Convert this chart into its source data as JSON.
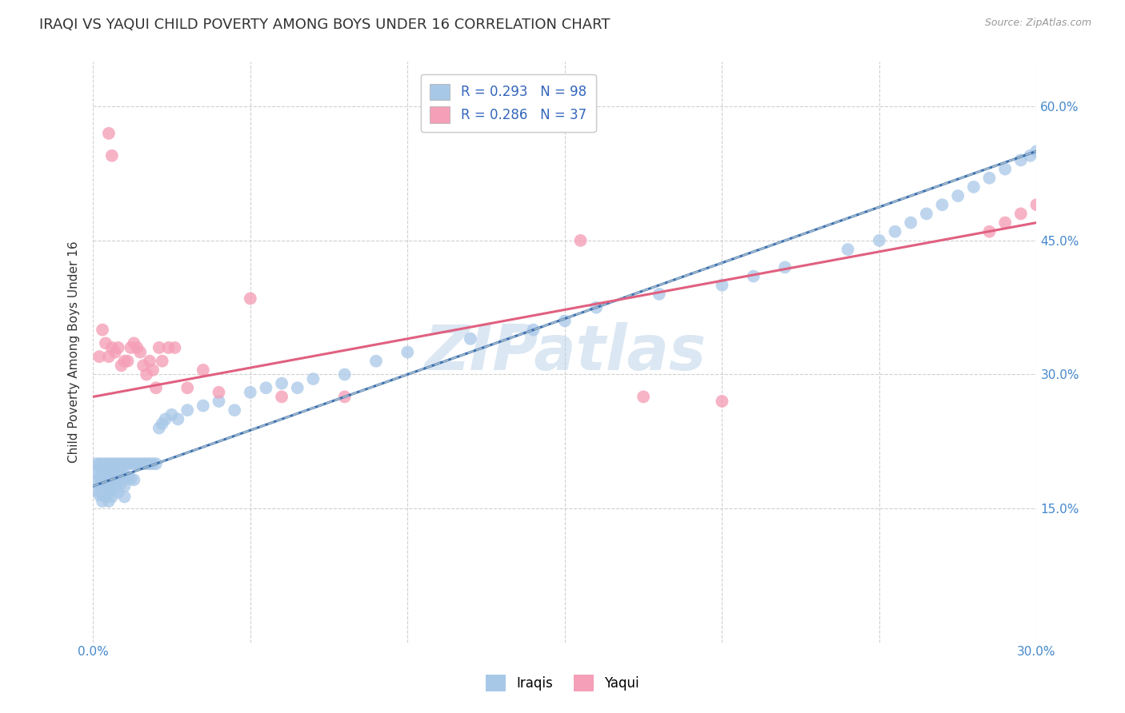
{
  "title": "IRAQI VS YAQUI CHILD POVERTY AMONG BOYS UNDER 16 CORRELATION CHART",
  "source": "Source: ZipAtlas.com",
  "ylabel": "Child Poverty Among Boys Under 16",
  "xlim": [
    0.0,
    0.3
  ],
  "ylim": [
    0.0,
    0.65
  ],
  "xticks": [
    0.0,
    0.05,
    0.1,
    0.15,
    0.2,
    0.25,
    0.3
  ],
  "yticks": [
    0.0,
    0.15,
    0.3,
    0.45,
    0.6
  ],
  "ytick_labels_right": [
    "",
    "15.0%",
    "30.0%",
    "45.0%",
    "60.0%"
  ],
  "watermark": "ZIPatlas",
  "iraqis_color": "#a8c8e8",
  "yaqui_color": "#f5a0b8",
  "iraqis_line_color": "#3a6fae",
  "iraqis_dash_color": "#a0b8cc",
  "yaqui_line_color": "#e06080",
  "background_color": "#ffffff",
  "grid_color": "#d0d0d0",
  "title_fontsize": 13,
  "axis_label_fontsize": 11,
  "tick_fontsize": 11,
  "iraqis_x": [
    0.001,
    0.001,
    0.001,
    0.001,
    0.002,
    0.002,
    0.002,
    0.002,
    0.002,
    0.003,
    0.003,
    0.003,
    0.003,
    0.003,
    0.003,
    0.003,
    0.004,
    0.004,
    0.004,
    0.004,
    0.004,
    0.005,
    0.005,
    0.005,
    0.005,
    0.005,
    0.005,
    0.006,
    0.006,
    0.006,
    0.006,
    0.006,
    0.007,
    0.007,
    0.007,
    0.007,
    0.008,
    0.008,
    0.008,
    0.008,
    0.009,
    0.009,
    0.009,
    0.01,
    0.01,
    0.01,
    0.01,
    0.011,
    0.011,
    0.012,
    0.012,
    0.013,
    0.013,
    0.014,
    0.015,
    0.016,
    0.017,
    0.018,
    0.019,
    0.02,
    0.021,
    0.022,
    0.023,
    0.025,
    0.027,
    0.03,
    0.035,
    0.04,
    0.045,
    0.05,
    0.055,
    0.06,
    0.065,
    0.07,
    0.08,
    0.09,
    0.1,
    0.12,
    0.14,
    0.15,
    0.16,
    0.18,
    0.2,
    0.21,
    0.22,
    0.24,
    0.25,
    0.255,
    0.26,
    0.265,
    0.27,
    0.275,
    0.28,
    0.285,
    0.29,
    0.295,
    0.298,
    0.3
  ],
  "iraqis_y": [
    0.2,
    0.19,
    0.18,
    0.17,
    0.2,
    0.195,
    0.185,
    0.175,
    0.165,
    0.2,
    0.196,
    0.19,
    0.183,
    0.175,
    0.165,
    0.158,
    0.2,
    0.194,
    0.186,
    0.175,
    0.163,
    0.2,
    0.194,
    0.186,
    0.177,
    0.168,
    0.158,
    0.2,
    0.193,
    0.185,
    0.174,
    0.163,
    0.2,
    0.192,
    0.183,
    0.172,
    0.2,
    0.191,
    0.18,
    0.168,
    0.2,
    0.19,
    0.178,
    0.2,
    0.188,
    0.175,
    0.163,
    0.2,
    0.185,
    0.2,
    0.183,
    0.2,
    0.182,
    0.2,
    0.2,
    0.2,
    0.2,
    0.2,
    0.2,
    0.2,
    0.24,
    0.245,
    0.25,
    0.255,
    0.25,
    0.26,
    0.265,
    0.27,
    0.26,
    0.28,
    0.285,
    0.29,
    0.285,
    0.295,
    0.3,
    0.315,
    0.325,
    0.34,
    0.35,
    0.36,
    0.375,
    0.39,
    0.4,
    0.41,
    0.42,
    0.44,
    0.45,
    0.46,
    0.47,
    0.48,
    0.49,
    0.5,
    0.51,
    0.52,
    0.53,
    0.54,
    0.545,
    0.55
  ],
  "yaqui_x": [
    0.002,
    0.003,
    0.004,
    0.005,
    0.006,
    0.007,
    0.008,
    0.009,
    0.01,
    0.011,
    0.012,
    0.013,
    0.014,
    0.015,
    0.016,
    0.017,
    0.018,
    0.019,
    0.02,
    0.021,
    0.022,
    0.024,
    0.026,
    0.03,
    0.035,
    0.04,
    0.05,
    0.06,
    0.08,
    0.155,
    0.175,
    0.2,
    0.285,
    0.29,
    0.295,
    0.3,
    0.005,
    0.006
  ],
  "yaqui_y": [
    0.32,
    0.35,
    0.335,
    0.32,
    0.33,
    0.325,
    0.33,
    0.31,
    0.315,
    0.315,
    0.33,
    0.335,
    0.33,
    0.325,
    0.31,
    0.3,
    0.315,
    0.305,
    0.285,
    0.33,
    0.315,
    0.33,
    0.33,
    0.285,
    0.305,
    0.28,
    0.385,
    0.275,
    0.275,
    0.45,
    0.275,
    0.27,
    0.46,
    0.47,
    0.48,
    0.49,
    0.57,
    0.545
  ],
  "iraqis_line_intercept": 0.175,
  "iraqis_line_slope": 1.25,
  "yaqui_line_intercept": 0.275,
  "yaqui_line_slope": 0.65
}
